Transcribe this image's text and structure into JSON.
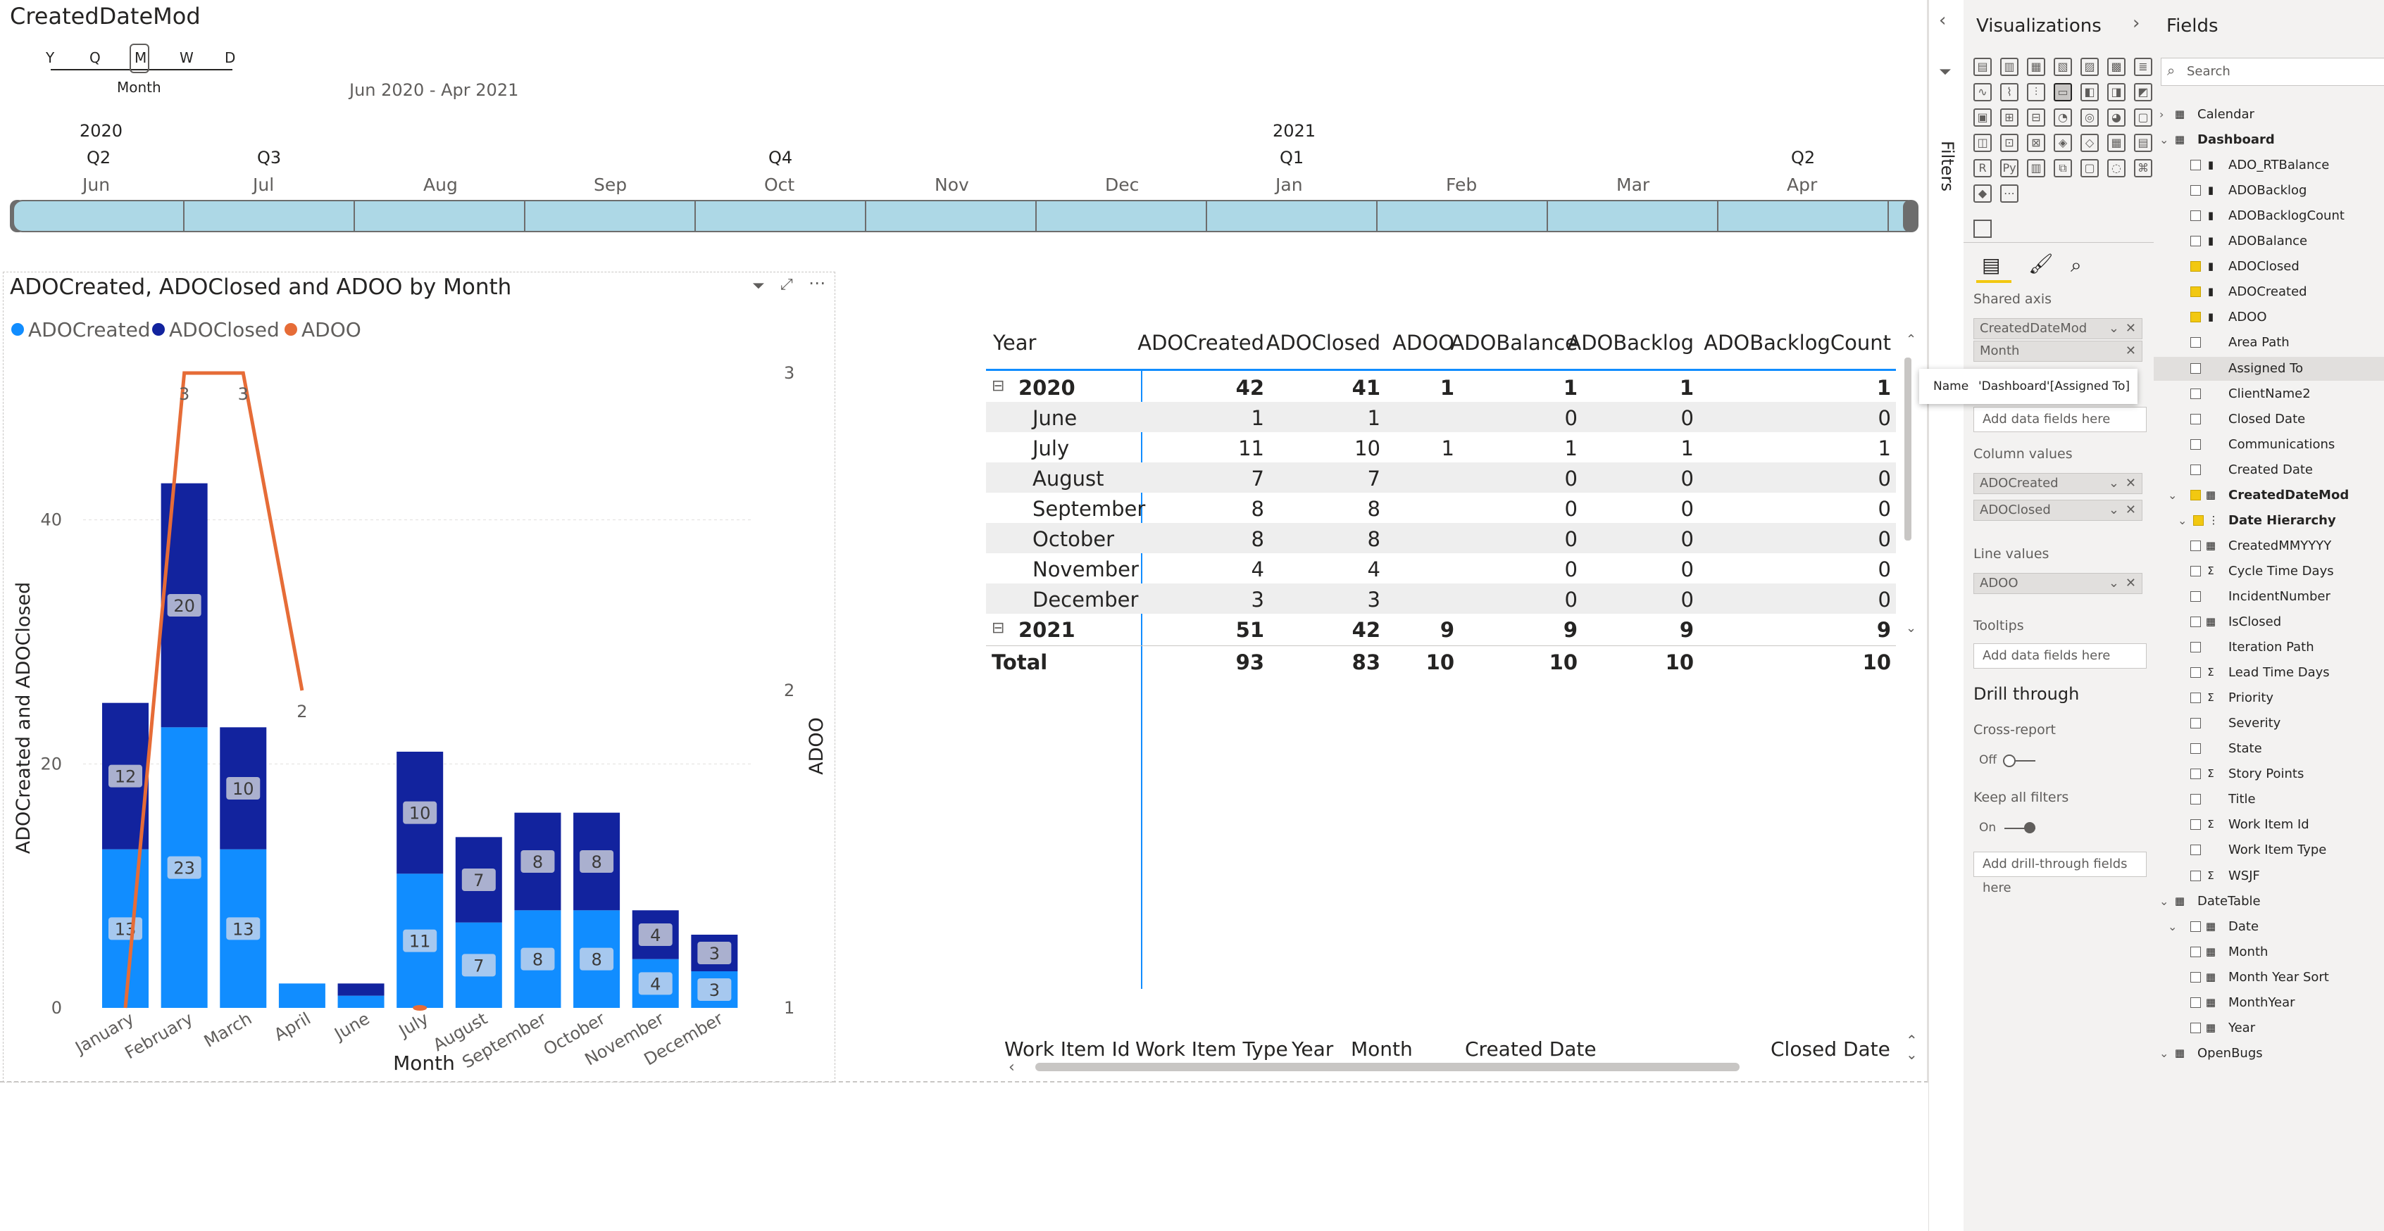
{
  "slicer": {
    "title": "CreatedDateMod",
    "granularity": [
      "Y",
      "Q",
      "M",
      "W",
      "D"
    ],
    "granularity_selected": "M",
    "granularity_selected_label": "Month",
    "range_label": "Jun 2020 - Apr 2021",
    "years": [
      "2020",
      "2021"
    ],
    "quarters": [
      "Q2",
      "Q3",
      "Q4",
      "Q1",
      "Q2"
    ],
    "months": [
      "Jun",
      "Jul",
      "Aug",
      "Sep",
      "Oct",
      "Nov",
      "Dec",
      "Jan",
      "Feb",
      "Mar",
      "Apr"
    ]
  },
  "chart": {
    "title": "ADOCreated, ADOClosed and ADOO by Month",
    "legend": [
      "ADOCreated",
      "ADOClosed",
      "ADOO"
    ],
    "colors": {
      "created": "#118dff",
      "closed": "#12239e",
      "adoo": "#e66c37"
    }
  },
  "chart_data": {
    "type": "bar",
    "stacked": true,
    "combo": "line",
    "title": "ADOCreated, ADOClosed and ADOO by Month",
    "xlabel": "Month",
    "ylabel": "ADOCreated and ADOClosed",
    "y2label": "ADOO",
    "categories": [
      "January",
      "February",
      "March",
      "April",
      "June",
      "July",
      "August",
      "September",
      "October",
      "November",
      "December"
    ],
    "series": [
      {
        "name": "ADOCreated",
        "axis": "left",
        "values": [
          13,
          23,
          13,
          2,
          1,
          11,
          7,
          8,
          8,
          4,
          3
        ]
      },
      {
        "name": "ADOClosed",
        "axis": "left",
        "values": [
          12,
          20,
          10,
          0,
          1,
          10,
          7,
          8,
          8,
          4,
          3
        ]
      },
      {
        "name": "ADOO",
        "axis": "right",
        "type": "line",
        "values": [
          1,
          3,
          3,
          2,
          null,
          1,
          null,
          null,
          null,
          null,
          null
        ]
      }
    ],
    "bar_labels": {
      "created": [
        "13",
        "23",
        "13",
        "",
        "",
        "11",
        "7",
        "8",
        "8",
        "4",
        "3"
      ],
      "closed": [
        "12",
        "20",
        "10",
        "",
        "",
        "10",
        "7",
        "8",
        "8",
        "4",
        "3"
      ]
    },
    "line_labels": [
      "1",
      "3",
      "3",
      "2",
      "",
      "1",
      "",
      "",
      "",
      "",
      ""
    ],
    "ylim": [
      0,
      50
    ],
    "yticks": [
      "0",
      "20",
      "40"
    ],
    "y2lim": [
      1,
      3
    ],
    "y2ticks": [
      "1",
      "2",
      "3"
    ],
    "legend_position": "top-left",
    "grid": true
  },
  "matrix": {
    "headers": [
      "Year",
      "ADOCreated",
      "ADOClosed",
      "ADOO",
      "ADOBalance",
      "ADOBacklog",
      "ADOBacklogCount"
    ],
    "rows": [
      {
        "label": "2020",
        "bold": true,
        "expander": "⊟",
        "values": [
          "42",
          "41",
          "1",
          "1",
          "1",
          "1"
        ]
      },
      {
        "label": "June",
        "values": [
          "1",
          "1",
          "",
          "0",
          "0",
          "0"
        ]
      },
      {
        "label": "July",
        "values": [
          "11",
          "10",
          "1",
          "1",
          "1",
          "1"
        ]
      },
      {
        "label": "August",
        "values": [
          "7",
          "7",
          "",
          "0",
          "0",
          "0"
        ]
      },
      {
        "label": "September",
        "values": [
          "8",
          "8",
          "",
          "0",
          "0",
          "0"
        ]
      },
      {
        "label": "October",
        "values": [
          "8",
          "8",
          "",
          "0",
          "0",
          "0"
        ]
      },
      {
        "label": "November",
        "values": [
          "4",
          "4",
          "",
          "0",
          "0",
          "0"
        ]
      },
      {
        "label": "December",
        "values": [
          "3",
          "3",
          "",
          "0",
          "0",
          "0"
        ]
      },
      {
        "label": "2021",
        "bold": true,
        "expander": "⊟",
        "values": [
          "51",
          "42",
          "9",
          "9",
          "9",
          "9"
        ]
      },
      {
        "label": "Total",
        "bold": true,
        "values": [
          "93",
          "83",
          "10",
          "10",
          "10",
          "10"
        ]
      }
    ]
  },
  "bottom_table": {
    "headers": [
      "Work Item Id",
      "Work Item Type",
      "Year",
      "Month",
      "Created Date",
      "Closed Date"
    ]
  },
  "filters_pane": {
    "label": "Filters"
  },
  "viz_pane": {
    "title": "Visualizations",
    "shared_axis_label": "Shared axis",
    "shared_axis_fields": [
      "CreatedDateMod",
      "Month"
    ],
    "add_fields": "Add data fields here",
    "column_values_label": "Column values",
    "column_values_fields": [
      "ADOCreated",
      "ADOClosed"
    ],
    "line_values_label": "Line values",
    "line_values_fields": [
      "ADOO"
    ],
    "tooltips_label": "Tooltips",
    "drill_title": "Drill through",
    "cross_report_label": "Cross-report",
    "cross_report_state": "Off",
    "keep_filters_label": "Keep all filters",
    "keep_filters_state": "On",
    "add_drill": "Add drill-through fields here",
    "tooltip_name_key": "Name",
    "tooltip_name_value": "'Dashboard'[Assigned To]"
  },
  "fields_pane": {
    "title": "Fields",
    "search_placeholder": "Search",
    "items": [
      {
        "label": "Calendar",
        "level": 0,
        "caret": "›",
        "icon": "▦",
        "checked": false
      },
      {
        "label": "Dashboard",
        "level": 0,
        "caret": "⌄",
        "icon": "▦",
        "checked": false,
        "bold": true
      },
      {
        "label": "ADO_RTBalance",
        "level": 1,
        "icon": "▮",
        "checked": false
      },
      {
        "label": "ADOBacklog",
        "level": 1,
        "icon": "▮",
        "checked": false
      },
      {
        "label": "ADOBacklogCount",
        "level": 1,
        "icon": "▮",
        "checked": false
      },
      {
        "label": "ADOBalance",
        "level": 1,
        "icon": "▮",
        "checked": false
      },
      {
        "label": "ADOClosed",
        "level": 1,
        "icon": "▮",
        "checked": true
      },
      {
        "label": "ADOCreated",
        "level": 1,
        "icon": "▮",
        "checked": true
      },
      {
        "label": "ADOO",
        "level": 1,
        "icon": "▮",
        "checked": true
      },
      {
        "label": "Area Path",
        "level": 1,
        "icon": "",
        "checked": false
      },
      {
        "label": "Assigned To",
        "level": 1,
        "icon": "",
        "checked": false
      },
      {
        "label": "ClientName2",
        "level": 1,
        "icon": "",
        "checked": false
      },
      {
        "label": "Closed Date",
        "level": 1,
        "icon": "",
        "checked": false
      },
      {
        "label": "Communications",
        "level": 1,
        "icon": "",
        "checked": false
      },
      {
        "label": "Created Date",
        "level": 1,
        "icon": "",
        "checked": false
      },
      {
        "label": "CreatedDateMod",
        "level": 1,
        "caret": "⌄",
        "icon": "▦",
        "checked": true,
        "bold": true
      },
      {
        "label": "Date Hierarchy",
        "level": 2,
        "caret": "⌄",
        "icon": "⋮",
        "checked": true,
        "bold": true
      },
      {
        "label": "CreatedMMYYYY",
        "level": 1,
        "icon": "▦",
        "checked": false
      },
      {
        "label": "Cycle Time Days",
        "level": 1,
        "icon": "Σ",
        "checked": false
      },
      {
        "label": "IncidentNumber",
        "level": 1,
        "icon": "",
        "checked": false
      },
      {
        "label": "IsClosed",
        "level": 1,
        "icon": "▦",
        "checked": false
      },
      {
        "label": "Iteration Path",
        "level": 1,
        "icon": "",
        "checked": false
      },
      {
        "label": "Lead Time Days",
        "level": 1,
        "icon": "Σ",
        "checked": false
      },
      {
        "label": "Priority",
        "level": 1,
        "icon": "Σ",
        "checked": false
      },
      {
        "label": "Severity",
        "level": 1,
        "icon": "",
        "checked": false
      },
      {
        "label": "State",
        "level": 1,
        "icon": "",
        "checked": false
      },
      {
        "label": "Story Points",
        "level": 1,
        "icon": "Σ",
        "checked": false
      },
      {
        "label": "Title",
        "level": 1,
        "icon": "",
        "checked": false
      },
      {
        "label": "Work Item Id",
        "level": 1,
        "icon": "Σ",
        "checked": false
      },
      {
        "label": "Work Item Type",
        "level": 1,
        "icon": "",
        "checked": false
      },
      {
        "label": "WSJF",
        "level": 1,
        "icon": "Σ",
        "checked": false
      },
      {
        "label": "DateTable",
        "level": 0,
        "caret": "⌄",
        "icon": "▦",
        "checked": false
      },
      {
        "label": "Date",
        "level": 1,
        "caret": "⌄",
        "icon": "▦",
        "checked": false
      },
      {
        "label": "Month",
        "level": 1,
        "icon": "▦",
        "checked": false
      },
      {
        "label": "Month Year Sort",
        "level": 1,
        "icon": "▦",
        "checked": false
      },
      {
        "label": "MonthYear",
        "level": 1,
        "icon": "▦",
        "checked": false
      },
      {
        "label": "Year",
        "level": 1,
        "icon": "▦",
        "checked": false
      },
      {
        "label": "OpenBugs",
        "level": 0,
        "caret": "⌄",
        "icon": "▦",
        "checked": false
      }
    ]
  }
}
